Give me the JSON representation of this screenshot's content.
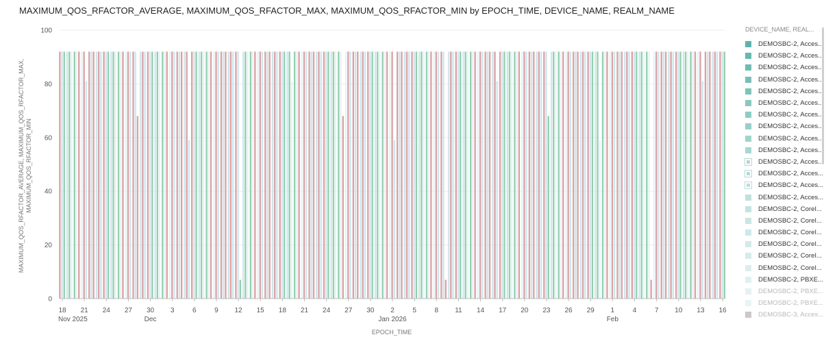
{
  "chart_data": {
    "type": "bar",
    "title": "MAXIMUM_QOS_RFACTOR_AVERAGE, MAXIMUM_QOS_RFACTOR_MAX, MAXIMUM_QOS_RFACTOR_MIN by EPOCH_TIME, DEVICE_NAME, REALM_NAME",
    "xlabel": "EPOCH_TIME",
    "ylabel_lines": [
      "MAXIMUM_QOS_RFACTOR_AVERAGE, MAXIMUM_QOS_RFACTOR_MAX,",
      "MAXIMUM_QOS_RFACTOR_MIN"
    ],
    "ylim": [
      0,
      100
    ],
    "yticks": [
      0,
      20,
      40,
      60,
      80,
      100
    ],
    "grid": true,
    "legend_position": "right",
    "x_tick_labels": [
      "18",
      "21",
      "24",
      "27",
      "30",
      "3",
      "6",
      "9",
      "12",
      "15",
      "18",
      "21",
      "24",
      "27",
      "30",
      "2",
      "5",
      "8",
      "11",
      "14",
      "17",
      "20",
      "23",
      "26",
      "29",
      "1",
      "4",
      "7",
      "10",
      "13",
      "16"
    ],
    "x_period_labels": [
      {
        "text": "Nov 2025",
        "under_tick": 0
      },
      {
        "text": "Dec",
        "under_tick": 4
      },
      {
        "text": "Jan 2026",
        "under_tick": 15
      },
      {
        "text": "Feb",
        "under_tick": 25
      }
    ],
    "x_categories_start": "2025-11-18",
    "x_categories_end": "2026-02-16",
    "series_colors": {
      "red": "#d9a3a6",
      "green": "#93cfb0",
      "light_blue": "#cfe6ec",
      "pale": "#e9f2f4"
    },
    "typical_value": 92,
    "lower_values_observed": [
      81,
      68,
      59,
      7
    ],
    "legend": {
      "title": "DEVICE_NAME, REAL...",
      "items": [
        {
          "label": "DEMOSBC-2, Acces...",
          "color": "#5fb3a8",
          "checked": false
        },
        {
          "label": "DEMOSBC-2, Acces...",
          "color": "#67b8ad",
          "checked": false
        },
        {
          "label": "DEMOSBC-2, Acces...",
          "color": "#6fbcb2",
          "checked": false
        },
        {
          "label": "DEMOSBC-2, Acces...",
          "color": "#77c0b7",
          "checked": false
        },
        {
          "label": "DEMOSBC-2, Acces...",
          "color": "#7fc4bb",
          "checked": false
        },
        {
          "label": "DEMOSBC-2, Acces...",
          "color": "#87c8c0",
          "checked": false
        },
        {
          "label": "DEMOSBC-2, Acces...",
          "color": "#8fccc4",
          "checked": false
        },
        {
          "label": "DEMOSBC-2, Acces...",
          "color": "#97d0c9",
          "checked": false
        },
        {
          "label": "DEMOSBC-2, Acces...",
          "color": "#9fd3cd",
          "checked": false
        },
        {
          "label": "DEMOSBC-2, Acces...",
          "color": "#a7d7d1",
          "checked": false
        },
        {
          "label": "DEMOSBC-2, Acces...",
          "color": "#afdad5",
          "checked": true
        },
        {
          "label": "DEMOSBC-2, Acces...",
          "color": "#b4dcd8",
          "checked": true
        },
        {
          "label": "DEMOSBC-2, Acces...",
          "color": "#b9dfdb",
          "checked": true
        },
        {
          "label": "DEMOSBC-2, Acces...",
          "color": "#bee1de",
          "checked": false
        },
        {
          "label": "DEMOSBC-2, CoreI...",
          "color": "#c3e3e1",
          "checked": false
        },
        {
          "label": "DEMOSBC-2, CoreI...",
          "color": "#c8e6e4",
          "checked": false
        },
        {
          "label": "DEMOSBC-2, CoreI...",
          "color": "#cde8e7",
          "checked": false
        },
        {
          "label": "DEMOSBC-2, CoreI...",
          "color": "#d2eae9",
          "checked": false
        },
        {
          "label": "DEMOSBC-2, CoreI...",
          "color": "#d6ecec",
          "checked": false
        },
        {
          "label": "DEMOSBC-2, CoreI...",
          "color": "#dbeeee",
          "checked": false
        },
        {
          "label": "DEMOSBC-2, PBXE...",
          "color": "#dff0f1",
          "checked": false
        },
        {
          "label": "DEMOSBC-2, PBXE...",
          "color": "#e3f2f3",
          "checked": false
        },
        {
          "label": "DEMOSBC-2, PBXE...",
          "color": "#e8f4f5",
          "checked": false
        },
        {
          "label": "DEMOSBC-3, Acces...",
          "color": "#c9c9c9",
          "checked": false
        }
      ]
    }
  }
}
